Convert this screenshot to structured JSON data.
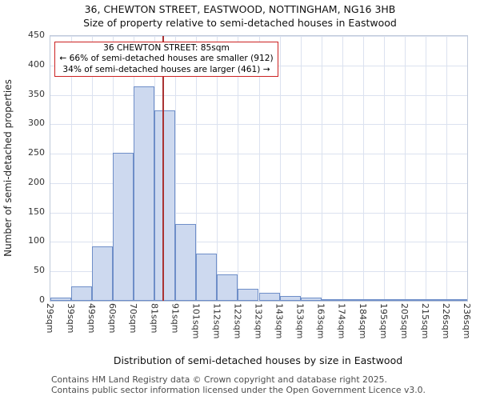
{
  "title": "36, CHEWTON STREET, EASTWOOD, NOTTINGHAM, NG16 3HB",
  "subtitle": "Size of property relative to semi-detached houses in Eastwood",
  "chart_data": {
    "type": "bar",
    "title": "36, CHEWTON STREET, EASTWOOD, NOTTINGHAM, NG16 3HB",
    "subtitle": "Size of property relative to semi-detached houses in Eastwood",
    "xlabel": "Distribution of semi-detached houses by size in Eastwood",
    "ylabel": "Number of semi-detached properties",
    "ylim": [
      0,
      450
    ],
    "ytick_step": 50,
    "grid": true,
    "bin_edges_sqm": [
      29,
      39,
      49,
      60,
      70,
      81,
      91,
      101,
      112,
      122,
      132,
      143,
      153,
      163,
      174,
      184,
      195,
      205,
      215,
      226,
      236
    ],
    "tick_labels": [
      "29sqm",
      "39sqm",
      "49sqm",
      "60sqm",
      "70sqm",
      "81sqm",
      "91sqm",
      "101sqm",
      "112sqm",
      "122sqm",
      "132sqm",
      "143sqm",
      "153sqm",
      "163sqm",
      "174sqm",
      "184sqm",
      "195sqm",
      "205sqm",
      "215sqm",
      "226sqm",
      "236sqm"
    ],
    "values": [
      5,
      25,
      92,
      252,
      365,
      323,
      130,
      80,
      45,
      20,
      13,
      8,
      5,
      3,
      2,
      1,
      1,
      3,
      1,
      2
    ],
    "bar_fill": "#cdd9ef",
    "bar_border": "#6e8ec8",
    "marker": {
      "value_sqm": 85,
      "color": "#aa3333"
    },
    "annotation": {
      "lines": [
        "36 CHEWTON STREET: 85sqm",
        "← 66% of semi-detached houses are smaller (912)",
        "34% of semi-detached houses are larger (461) →"
      ],
      "border_color": "#cc2222"
    },
    "stats": {
      "property_label": "36 CHEWTON STREET",
      "property_size_sqm": 85,
      "pct_smaller": 66,
      "count_smaller": 912,
      "pct_larger": 34,
      "count_larger": 461
    }
  },
  "footer": {
    "line1": "Contains HM Land Registry data © Crown copyright and database right 2025.",
    "line2": "Contains public sector information licensed under the Open Government Licence v3.0."
  }
}
